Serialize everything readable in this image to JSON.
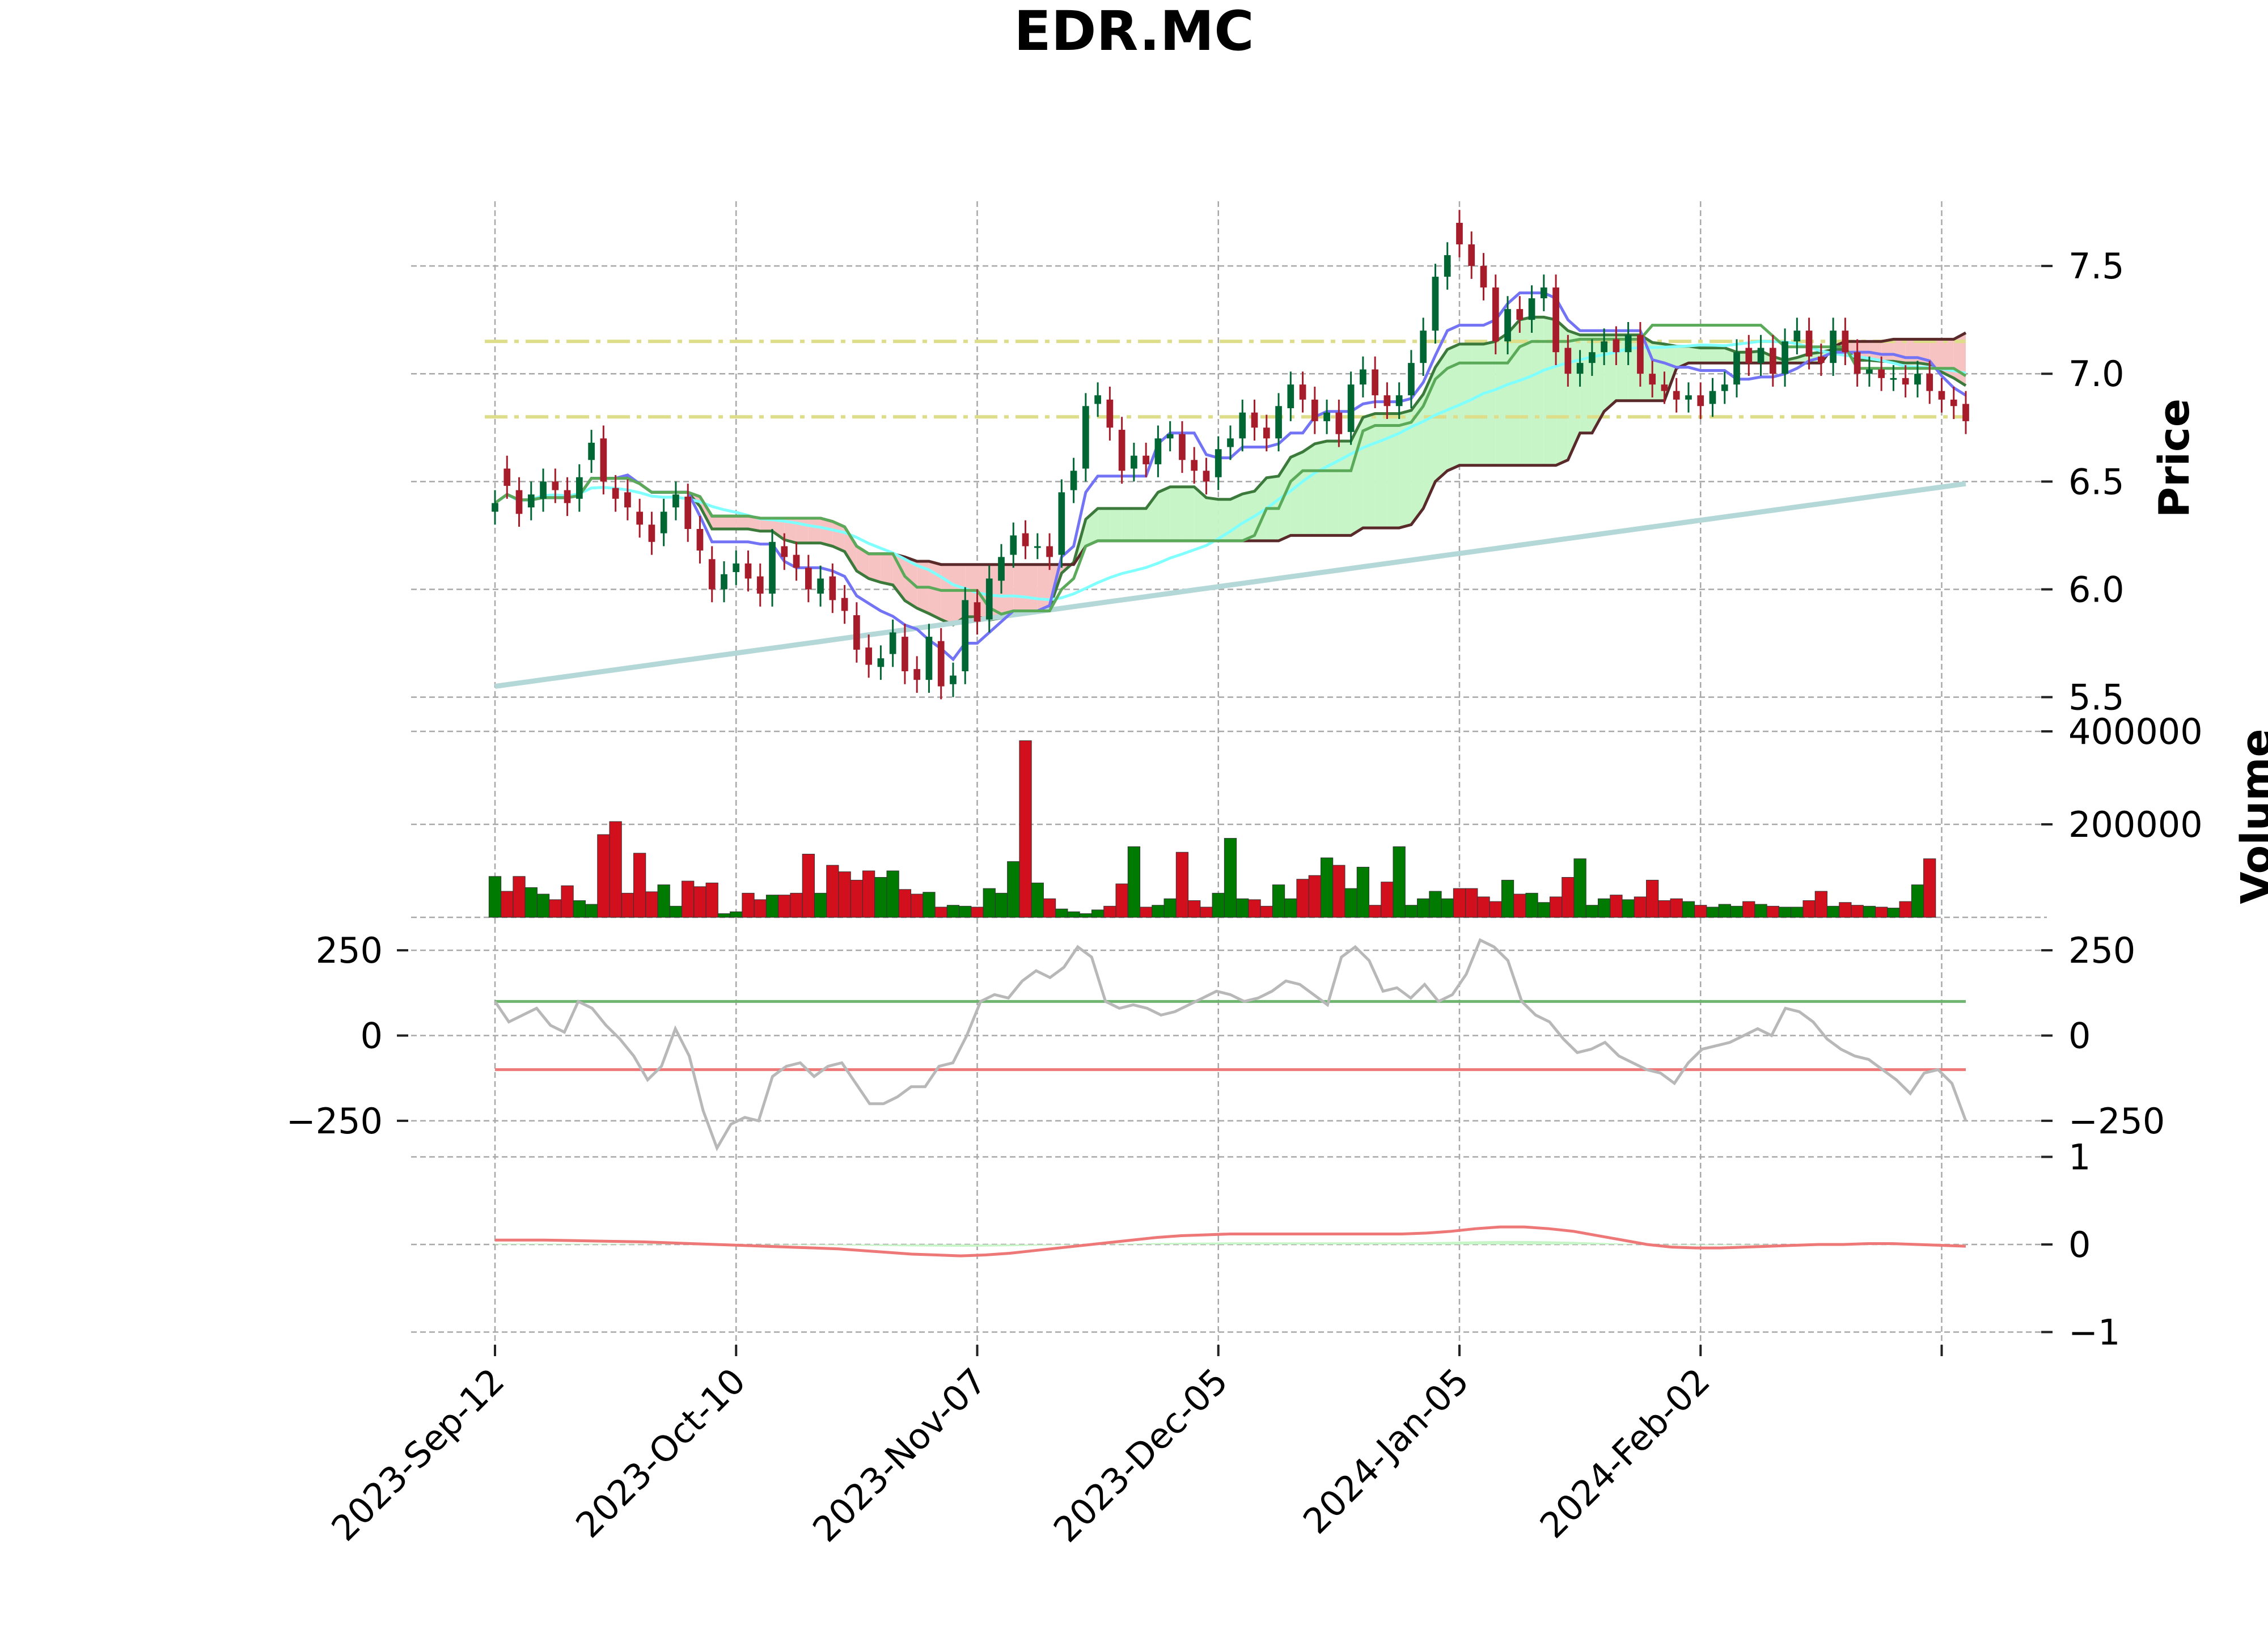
{
  "chart_data": {
    "type": "candlestick",
    "title": "EDR.MC",
    "x_tick_labels": [
      "2023-Sep-12",
      "2023-Oct-10",
      "2023-Nov-07",
      "2023-Dec-05",
      "2024-Jan-05",
      "2024-Feb-02"
    ],
    "panels": [
      {
        "name": "price",
        "ylabel": "Price",
        "ylim": [
          5.42,
          7.8
        ],
        "yticks": [
          5.5,
          6.0,
          6.5,
          7.0,
          7.5
        ],
        "ytick_labels": [
          "5.5",
          "6.0",
          "6.5",
          "7.0",
          "7.5"
        ],
        "horizontal_levels": [
          7.15,
          6.8
        ],
        "close": [
          6.4,
          6.48,
          6.35,
          6.44,
          6.5,
          6.46,
          6.4,
          6.52,
          6.68,
          6.5,
          6.42,
          6.38,
          6.3,
          6.22,
          6.36,
          6.44,
          6.28,
          6.18,
          6.0,
          6.07,
          6.12,
          6.05,
          5.98,
          6.22,
          6.15,
          6.1,
          6.0,
          6.05,
          5.95,
          5.9,
          5.72,
          5.65,
          5.68,
          5.8,
          5.62,
          5.58,
          5.78,
          5.55,
          5.6,
          5.95,
          5.85,
          6.05,
          6.15,
          6.25,
          6.2,
          6.2,
          6.15,
          6.45,
          6.55,
          6.85,
          6.9,
          6.75,
          6.55,
          6.62,
          6.58,
          6.7,
          6.72,
          6.6,
          6.55,
          6.5,
          6.65,
          6.7,
          6.82,
          6.75,
          6.7,
          6.85,
          6.95,
          6.88,
          6.78,
          6.82,
          6.72,
          6.95,
          7.02,
          6.9,
          6.85,
          6.9,
          7.05,
          7.2,
          7.45,
          7.55,
          7.6,
          7.5,
          7.4,
          7.15,
          7.3,
          7.25,
          7.35,
          7.4,
          7.1,
          7.0,
          7.05,
          7.1,
          7.15,
          7.1,
          7.18,
          7.0,
          6.95,
          6.92,
          6.88,
          6.9,
          6.85,
          6.92,
          6.95,
          7.1,
          7.05,
          7.12,
          7.0,
          7.15,
          7.2,
          7.08,
          7.05,
          7.2,
          7.1,
          7.0,
          7.02,
          6.98,
          6.98,
          6.95,
          7.0,
          6.92,
          6.88,
          6.85,
          6.78
        ],
        "open": [
          6.36,
          6.56,
          6.46,
          6.38,
          6.42,
          6.5,
          6.46,
          6.42,
          6.6,
          6.7,
          6.47,
          6.45,
          6.36,
          6.3,
          6.26,
          6.38,
          6.43,
          6.28,
          6.14,
          6.0,
          6.08,
          6.12,
          6.06,
          5.98,
          6.2,
          6.16,
          6.1,
          5.98,
          6.06,
          5.96,
          5.88,
          5.73,
          5.64,
          5.7,
          5.78,
          5.63,
          5.58,
          5.76,
          5.56,
          5.62,
          5.94,
          5.86,
          6.04,
          6.16,
          6.26,
          6.2,
          6.2,
          6.16,
          6.46,
          6.56,
          6.86,
          6.88,
          6.74,
          6.56,
          6.62,
          6.58,
          6.7,
          6.72,
          6.6,
          6.55,
          6.52,
          6.66,
          6.7,
          6.82,
          6.75,
          6.7,
          6.84,
          6.95,
          6.88,
          6.78,
          6.82,
          6.73,
          6.95,
          7.02,
          6.9,
          6.85,
          6.9,
          7.05,
          7.2,
          7.45,
          7.7,
          7.6,
          7.5,
          7.4,
          7.15,
          7.3,
          7.25,
          7.35,
          7.4,
          7.12,
          7.0,
          7.05,
          7.1,
          7.16,
          7.1,
          7.18,
          7.0,
          6.95,
          6.92,
          6.88,
          6.9,
          6.86,
          6.92,
          6.95,
          7.12,
          7.05,
          7.12,
          7.0,
          7.15,
          7.2,
          7.08,
          7.05,
          7.2,
          7.1,
          7.0,
          7.02,
          6.98,
          6.98,
          6.95,
          7.0,
          6.92,
          6.88,
          6.86
        ]
      },
      {
        "name": "volume",
        "ylabel": "Volume",
        "ylim": [
          0,
          400000
        ],
        "yticks": [
          200000,
          400000
        ],
        "ytick_labels": [
          "200000",
          "400000"
        ],
        "values": [
          88000,
          56000,
          88000,
          64000,
          50000,
          38000,
          68000,
          36000,
          28000,
          178000,
          206000,
          52000,
          138000,
          55000,
          70000,
          24000,
          78000,
          66000,
          74000,
          8000,
          12000,
          52000,
          38000,
          48000,
          48000,
          52000,
          136000,
          52000,
          112000,
          98000,
          80000,
          100000,
          86000,
          100000,
          60000,
          50000,
          54000,
          22000,
          26000,
          24000,
          22000,
          62000,
          52000,
          120000,
          380000,
          74000,
          40000,
          18000,
          12000,
          8000,
          16000,
          24000,
          72000,
          152000,
          22000,
          26000,
          40000,
          140000,
          36000,
          22000,
          52000,
          170000,
          40000,
          38000,
          24000,
          70000,
          40000,
          82000,
          90000,
          128000,
          112000,
          62000,
          108000,
          26000,
          76000,
          152000,
          26000,
          40000,
          56000,
          40000,
          62000,
          62000,
          44000,
          34000,
          80000,
          50000,
          52000,
          32000,
          44000,
          86000,
          126000,
          26000,
          40000,
          48000,
          38000,
          44000,
          80000,
          36000,
          40000,
          34000,
          26000,
          22000,
          28000,
          24000,
          34000,
          28000,
          24000,
          22000,
          22000,
          36000,
          56000,
          24000,
          32000,
          26000,
          24000,
          22000,
          20000,
          34000,
          70000,
          126000
        ],
        "colors_up_down": [
          "#007a00",
          "#d2101d"
        ]
      },
      {
        "name": "oscillator",
        "ylim": [
          -330,
          330
        ],
        "yticks": [
          -250,
          0,
          250
        ],
        "ytick_labels": [
          "−250",
          "0",
          "250"
        ],
        "overbought": 100,
        "oversold": -100,
        "values": [
          100,
          40,
          60,
          80,
          30,
          10,
          100,
          80,
          30,
          -10,
          -60,
          -130,
          -90,
          20,
          -60,
          -220,
          -330,
          -260,
          -240,
          -250,
          -120,
          -90,
          -80,
          -120,
          -90,
          -80,
          -140,
          -200,
          -200,
          -180,
          -150,
          -150,
          -90,
          -80,
          0,
          100,
          120,
          110,
          160,
          190,
          170,
          200,
          260,
          230,
          100,
          80,
          90,
          80,
          60,
          70,
          90,
          110,
          130,
          120,
          100,
          110,
          130,
          160,
          150,
          120,
          90,
          230,
          260,
          220,
          130,
          140,
          110,
          150,
          100,
          120,
          180,
          280,
          260,
          220,
          100,
          60,
          40,
          -10,
          -50,
          -40,
          -20,
          -60,
          -80,
          -100,
          -110,
          -140,
          -80,
          -40,
          -30,
          -20,
          0,
          20,
          0,
          80,
          70,
          40,
          -10,
          -40,
          -60,
          -70,
          -100,
          -130,
          -170,
          -110,
          -100,
          -140,
          -250
        ]
      },
      {
        "name": "macd",
        "ylim": [
          -1.1,
          1.1
        ],
        "yticks": [
          -1,
          0,
          1
        ],
        "ytick_labels": [
          "−1",
          "0",
          "1"
        ],
        "macd": [
          0.05,
          0.05,
          0.05,
          0.045,
          0.04,
          0.035,
          0.03,
          0.02,
          0.01,
          0.0,
          -0.01,
          -0.02,
          -0.03,
          -0.04,
          -0.05,
          -0.07,
          -0.09,
          -0.11,
          -0.12,
          -0.13,
          -0.12,
          -0.1,
          -0.07,
          -0.04,
          -0.01,
          0.02,
          0.05,
          0.08,
          0.1,
          0.11,
          0.12,
          0.12,
          0.12,
          0.12,
          0.12,
          0.12,
          0.12,
          0.12,
          0.13,
          0.15,
          0.18,
          0.2,
          0.2,
          0.18,
          0.15,
          0.1,
          0.05,
          0.0,
          -0.03,
          -0.04,
          -0.04,
          -0.03,
          -0.02,
          -0.01,
          0.0,
          0.0,
          0.01,
          0.01,
          0.0,
          -0.01,
          -0.02
        ]
      }
    ],
    "overlay_series": [
      {
        "color": "#7373f5",
        "role": "tenkan"
      },
      {
        "color": "#5aaa5a",
        "role": "kijun"
      },
      {
        "color": "#80ffff",
        "role": "moving average"
      },
      {
        "color": "#b4d7d7",
        "role": "long moving average"
      },
      {
        "color": "#e86f6f",
        "role": "parabolic sar down"
      },
      {
        "color": "#82b482",
        "role": "parabolic sar up"
      },
      {
        "color": "#c7f5c7",
        "role": "cloud bullish"
      },
      {
        "color": "#f7c2c2",
        "role": "cloud bearish"
      }
    ],
    "grid": true,
    "candle_colors": {
      "up": "#006633",
      "down": "#a61c2a"
    }
  }
}
